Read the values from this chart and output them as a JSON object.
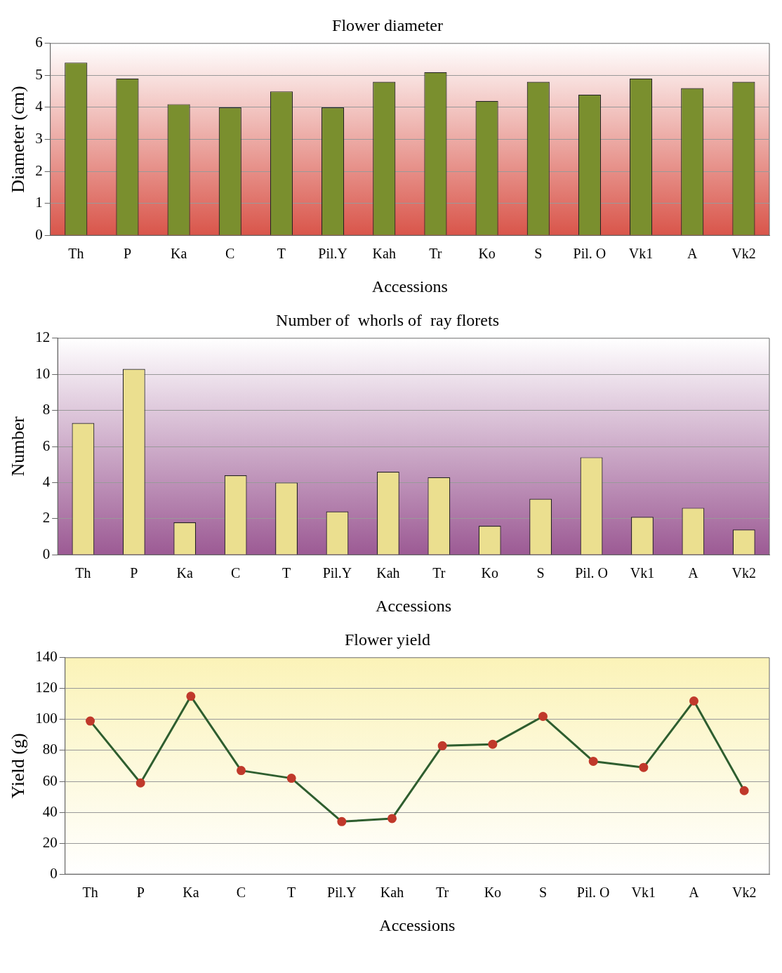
{
  "chart_data": [
    {
      "type": "bar",
      "title": "Flower diameter",
      "xlabel": "Accessions",
      "ylabel": "Diameter (cm)",
      "categories": [
        "Th",
        "P",
        "Ka",
        "C",
        "T",
        "Pil.Y",
        "Kah",
        "Tr",
        "Ko",
        "S",
        "Pil. O",
        "Vk1",
        "A",
        "Vk2"
      ],
      "values": [
        5.4,
        4.9,
        4.1,
        4.0,
        4.5,
        4.0,
        4.8,
        5.1,
        4.2,
        4.8,
        4.4,
        4.9,
        4.6,
        4.8
      ],
      "color": "#7a8f2e",
      "ylim": [
        0,
        6
      ],
      "yticks": [
        0,
        1,
        2,
        3,
        4,
        5,
        6
      ],
      "grid": "y"
    },
    {
      "type": "bar",
      "title": "Number of  whorls of  ray florets",
      "xlabel": "Accessions",
      "ylabel": "Number",
      "categories": [
        "Th",
        "P",
        "Ka",
        "C",
        "T",
        "Pil.Y",
        "Kah",
        "Tr",
        "Ko",
        "S",
        "Pil. O",
        "Vk1",
        "A",
        "Vk2"
      ],
      "values": [
        7.3,
        10.3,
        1.8,
        4.4,
        4.0,
        2.4,
        4.6,
        4.3,
        1.6,
        3.1,
        5.4,
        2.1,
        2.6,
        1.4
      ],
      "color": "#ebdf8f",
      "ylim": [
        0,
        12
      ],
      "yticks": [
        0,
        2,
        4,
        6,
        8,
        10,
        12
      ],
      "grid": "y"
    },
    {
      "type": "line",
      "title": "Flower yield",
      "xlabel": "Accessions",
      "ylabel": "Yield (g)",
      "categories": [
        "Th",
        "P",
        "Ka",
        "C",
        "T",
        "Pil.Y",
        "Kah",
        "Tr",
        "Ko",
        "S",
        "Pil. O",
        "Vk1",
        "A",
        "Vk2"
      ],
      "series": [
        {
          "color": "#2f5e2f",
          "values": [
            99,
            59,
            115,
            67,
            62,
            34,
            36,
            83,
            84,
            102,
            73,
            69,
            112,
            54
          ]
        }
      ],
      "ylim": [
        0,
        140
      ],
      "yticks": [
        0,
        20,
        40,
        60,
        80,
        100,
        120,
        140
      ],
      "grid": "y",
      "marker": "circle",
      "line_style": "solid"
    }
  ]
}
